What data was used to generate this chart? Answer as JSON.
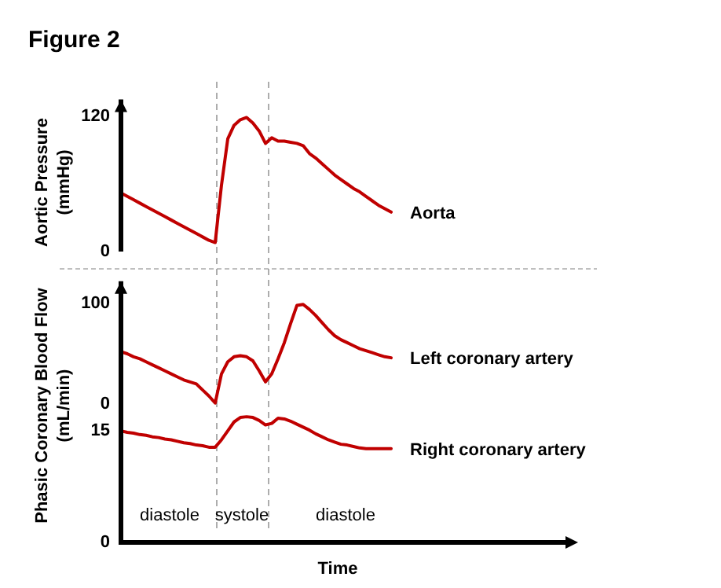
{
  "chart_data": [
    {
      "type": "line",
      "title": "Figure 2",
      "ylabel": "Aortic Pressure (mmHg)",
      "categories": [
        null,
        null,
        null,
        null,
        null,
        null,
        null,
        null,
        null,
        null,
        null,
        null,
        null,
        null,
        null,
        null,
        null,
        null,
        null,
        null,
        null,
        null,
        null,
        null,
        null,
        null,
        null,
        null,
        null,
        null,
        null,
        null,
        null,
        null,
        null,
        null,
        null,
        null,
        null,
        null,
        null,
        null,
        null,
        null
      ],
      "ylim": [
        0,
        135
      ],
      "yticks": [
        0,
        120
      ],
      "tick_labels": "y",
      "line_style": "solid",
      "series": [
        {
          "name": "Aorta",
          "color": "#c00000",
          "values": [
            52,
            49,
            46,
            43,
            40,
            37,
            34,
            31,
            28,
            25,
            22,
            19,
            16,
            13,
            10,
            8,
            59,
            100,
            112,
            117,
            119,
            114,
            107,
            96,
            101,
            98,
            98,
            97,
            96,
            94,
            87,
            83,
            78,
            73,
            68,
            64,
            60,
            56,
            53,
            49,
            45,
            41,
            38,
            35
          ]
        }
      ]
    },
    {
      "type": "line",
      "categories": [
        null,
        null,
        null,
        null,
        null,
        null,
        null,
        null,
        null,
        null,
        null,
        null,
        null,
        null,
        null,
        null,
        null,
        null,
        null,
        null,
        null,
        null,
        null,
        null,
        null,
        null,
        null,
        null,
        null,
        null,
        null,
        null,
        null,
        null,
        null,
        null,
        null,
        null,
        null,
        null,
        null,
        null,
        null,
        null
      ],
      "ylim": [
        -10,
        122
      ],
      "yticks": [
        0,
        100
      ],
      "tick_labels": "y",
      "line_style": "solid",
      "series": [
        {
          "name": "Left coronary artery",
          "color": "#c00000",
          "values": [
            52,
            50,
            47,
            45,
            42,
            39,
            36,
            33,
            30,
            27,
            24,
            22,
            20,
            14,
            8,
            1,
            30,
            42,
            47,
            48,
            47,
            43,
            33,
            22,
            30,
            45,
            61,
            80,
            98,
            99,
            94,
            88,
            81,
            74,
            68,
            64,
            61,
            58,
            55,
            53,
            51,
            49,
            47,
            46
          ]
        }
      ]
    },
    {
      "type": "line",
      "ylabel": "Phasic Coronary Blood Flow (mL/min)",
      "xlabel": "Time",
      "categories": [
        null,
        null,
        null,
        null,
        null,
        null,
        null,
        null,
        null,
        null,
        null,
        null,
        null,
        null,
        null,
        null,
        null,
        null,
        null,
        null,
        null,
        null,
        null,
        null,
        null,
        null,
        null,
        null,
        null,
        null,
        null,
        null,
        null,
        null,
        null,
        null,
        null,
        null,
        null,
        null,
        null,
        null,
        null,
        null
      ],
      "ylim": [
        0,
        20
      ],
      "yticks": [
        0,
        15
      ],
      "tick_labels": "y",
      "line_style": "solid",
      "series": [
        {
          "name": "Right coronary artery",
          "color": "#c00000",
          "values": [
            15,
            14.8,
            14.7,
            14.5,
            14.4,
            14.2,
            14.1,
            13.9,
            13.8,
            13.6,
            13.4,
            13.3,
            13.1,
            13,
            12.8,
            12.8,
            13.8,
            15,
            16.2,
            16.8,
            16.9,
            16.8,
            16.4,
            15.8,
            16,
            16.7,
            16.6,
            16.3,
            15.9,
            15.5,
            15.1,
            14.6,
            14.2,
            13.8,
            13.5,
            13.2,
            13.1,
            12.9,
            12.7,
            12.6,
            12.6,
            12.6,
            12.6,
            12.6
          ]
        }
      ],
      "annotations": [
        "diastole",
        "systole",
        "diastole"
      ]
    }
  ]
}
